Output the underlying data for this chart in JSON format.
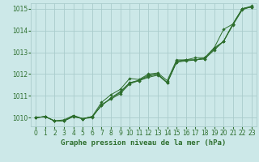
{
  "title": "Graphe pression niveau de la mer (hPa)",
  "background_color": "#cce8e8",
  "grid_color": "#aacccc",
  "line_color": "#2d6e2d",
  "marker_color": "#2d6e2d",
  "xlim": [
    -0.5,
    23.5
  ],
  "ylim": [
    1009.6,
    1015.25
  ],
  "xticks": [
    0,
    1,
    2,
    3,
    4,
    5,
    6,
    7,
    8,
    9,
    10,
    11,
    12,
    13,
    14,
    15,
    16,
    17,
    18,
    19,
    20,
    21,
    22,
    23
  ],
  "yticks": [
    1010,
    1011,
    1012,
    1013,
    1014,
    1015
  ],
  "series": [
    [
      1010.0,
      1010.05,
      1009.85,
      1009.85,
      1010.05,
      1009.95,
      1010.0,
      1010.6,
      1010.85,
      1011.1,
      1011.55,
      1011.7,
      1011.85,
      1011.95,
      1011.6,
      1012.55,
      1012.6,
      1012.65,
      1012.7,
      1013.1,
      1013.5,
      1014.25,
      1014.95,
      1015.1
    ],
    [
      1010.0,
      1010.05,
      1009.85,
      1009.9,
      1010.1,
      1009.95,
      1010.05,
      1010.55,
      1010.9,
      1011.15,
      1011.6,
      1011.7,
      1011.9,
      1012.0,
      1011.6,
      1012.55,
      1012.65,
      1012.65,
      1012.7,
      1013.15,
      1013.5,
      1014.3,
      1015.0,
      1015.12
    ],
    [
      1010.0,
      1010.05,
      1009.85,
      1009.85,
      1010.05,
      1009.95,
      1010.05,
      1010.55,
      1010.9,
      1011.2,
      1011.6,
      1011.72,
      1011.95,
      1012.0,
      1011.6,
      1012.6,
      1012.65,
      1012.65,
      1012.75,
      1013.2,
      1013.5,
      1014.3,
      1015.0,
      1015.08
    ],
    [
      1010.0,
      1010.05,
      1009.85,
      1009.85,
      1010.1,
      1009.95,
      1010.05,
      1010.7,
      1011.05,
      1011.3,
      1011.8,
      1011.75,
      1012.0,
      1012.05,
      1011.7,
      1012.65,
      1012.65,
      1012.75,
      1012.75,
      1013.2,
      1014.05,
      1014.3,
      1015.0,
      1015.08
    ]
  ]
}
